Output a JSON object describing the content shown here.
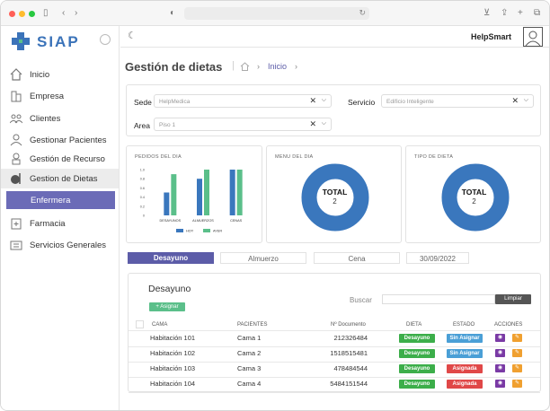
{
  "app": {
    "name": "SIAP"
  },
  "header": {
    "user": "HelpSmart"
  },
  "sidebar": {
    "items": [
      {
        "label": "Inicio",
        "icon": "home-icon"
      },
      {
        "label": "Empresa",
        "icon": "building-icon"
      },
      {
        "label": "Clientes",
        "icon": "clients-icon"
      },
      {
        "label": "Gestionar Pacientes",
        "icon": "patient-icon"
      },
      {
        "label": "Gestión de Recurso",
        "icon": "resource-icon"
      },
      {
        "label": "Gestion de Dietas",
        "icon": "diet-icon"
      },
      {
        "label": "Farmacia",
        "icon": "pharmacy-icon"
      },
      {
        "label": "Servicios Generales",
        "icon": "services-icon"
      }
    ],
    "submenu": {
      "label": "Enfermera"
    }
  },
  "page": {
    "title": "Gestión de dietas",
    "breadcrumb": "Inicio"
  },
  "filters": {
    "sede": {
      "label": "Sede",
      "value": "HelpMedica"
    },
    "servicio": {
      "label": "Servicio",
      "value": "Edificio Inteligente"
    },
    "area": {
      "label": "Area",
      "value": "Piso 1"
    }
  },
  "cards": {
    "pedidos": {
      "title": "PEDIDOS DEL DIA"
    },
    "menu": {
      "title": "MENU DEL DIA",
      "total_label": "TOTAL",
      "total_value": "2"
    },
    "tipo": {
      "title": "TIPO DE DIETA",
      "total_label": "TOTAL",
      "total_value": "2"
    }
  },
  "chart_data": {
    "type": "bar",
    "title": "PEDIDOS DEL DIA",
    "categories": [
      "DESAYUNOS",
      "ALMUERZOS",
      "CENAS"
    ],
    "series": [
      {
        "name": "HOY",
        "values": [
          0.5,
          0.8,
          1.0
        ],
        "color": "#3a77bd"
      },
      {
        "name": "AYER",
        "values": [
          0.9,
          1.0,
          1.0
        ],
        "color": "#5bbf8a"
      }
    ],
    "ylim": [
      0,
      1
    ],
    "yticks": [
      "0",
      "0.2",
      "0.4",
      "0.6",
      "0.8",
      "1.0"
    ],
    "legend": "bottom"
  },
  "tabs": {
    "desayuno": "Desayuno",
    "almuerzo": "Almuerzo",
    "cena": "Cena",
    "date": "30/09/2022"
  },
  "table": {
    "section_title": "Desayuno",
    "assign_button": "+ Asignar",
    "search_label": "Buscar",
    "clear_button": "Limpiar",
    "headers": [
      "CAMA",
      "PACIENTES",
      "Nº Documento",
      "DIETA",
      "ESTADO",
      "ACCIONES"
    ],
    "rows": [
      {
        "cama": "Habitación 101",
        "paciente": "Cama 1",
        "documento": "212326484",
        "dieta": "Desayuno",
        "estado": "Sin Asignar"
      },
      {
        "cama": "Habitación 102",
        "paciente": "Cama 2",
        "documento": "1518515481",
        "dieta": "Desayuno",
        "estado": "Sin Asignar"
      },
      {
        "cama": "Habitación 103",
        "paciente": "Cama 3",
        "documento": "478484544",
        "dieta": "Desayuno",
        "estado": "Asignada"
      },
      {
        "cama": "Habitación 104",
        "paciente": "Cama 4",
        "documento": "5484151544",
        "dieta": "Desayuno",
        "estado": "Asignada"
      }
    ]
  },
  "colors": {
    "primary": "#6b6bb7",
    "tab_active": "#5c5ca8",
    "donut": "#3a77bd",
    "dieta": "#3cae4a",
    "sin_asignar": "#4a9fd6",
    "asignada": "#e04848",
    "view": "#7a3aa5",
    "edit": "#f0a030"
  }
}
